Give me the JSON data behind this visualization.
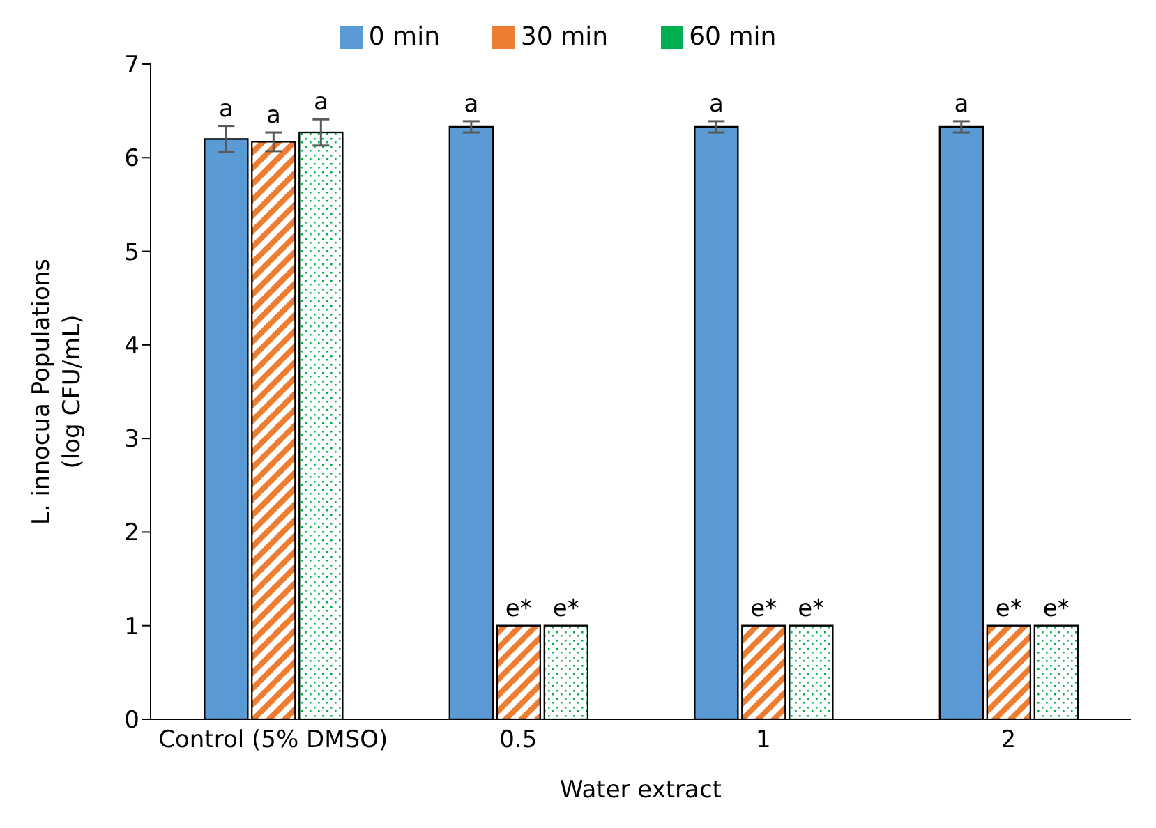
{
  "chart_data": {
    "type": "bar",
    "xlabel": "Water extract",
    "ylabel": "L. innocua Populations\n(log CFU/mL)",
    "categories": [
      "Control (5% DMSO)",
      "0.5",
      "1",
      "2"
    ],
    "series": [
      {
        "name": "0 min",
        "color": "#5b9bd5",
        "values": [
          6.2,
          6.33,
          6.33,
          6.33
        ],
        "errors": [
          0.14,
          0.06,
          0.06,
          0.06
        ],
        "value_labels": [
          "a",
          "a",
          "a",
          "a"
        ]
      },
      {
        "name": "30 min",
        "color": "#ed7d31",
        "values": [
          6.17,
          1,
          1,
          1
        ],
        "errors": [
          0.1,
          null,
          null,
          null
        ],
        "value_labels": [
          "a",
          "e*",
          "e*",
          "e*"
        ]
      },
      {
        "name": "60 min",
        "color": "#00b050",
        "values": [
          6.27,
          1,
          1,
          1
        ],
        "errors": [
          0.14,
          null,
          null,
          null
        ],
        "value_labels": [
          "a",
          "e*",
          "e*",
          "e*"
        ]
      }
    ],
    "ylim": [
      0,
      7
    ],
    "yticks": [
      0,
      1,
      2,
      3,
      4,
      5,
      6,
      7
    ],
    "grid": false,
    "legend": "top"
  }
}
